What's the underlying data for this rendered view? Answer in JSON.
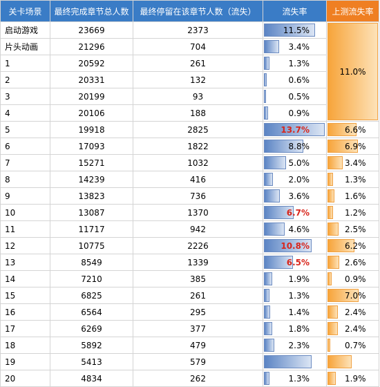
{
  "headers": [
    "关卡场景",
    "最终完成章节总人数",
    "最终停留在该章节人数（流失）",
    "流失率",
    "上测流失率"
  ],
  "rows": [
    {
      "scene": "启动游戏",
      "completed": "23669",
      "stayed": "2373",
      "rate": "11.5%",
      "rate_value": 11.5,
      "highlight": false
    },
    {
      "scene": "片头动画",
      "completed": "21296",
      "stayed": "704",
      "rate": "3.4%",
      "rate_value": 3.4,
      "highlight": false
    },
    {
      "scene": "1",
      "completed": "20592",
      "stayed": "261",
      "rate": "1.3%",
      "rate_value": 1.3,
      "highlight": false
    },
    {
      "scene": "2",
      "completed": "20331",
      "stayed": "132",
      "rate": "0.6%",
      "rate_value": 0.6,
      "highlight": false
    },
    {
      "scene": "3",
      "completed": "20199",
      "stayed": "93",
      "rate": "0.5%",
      "rate_value": 0.5,
      "highlight": false
    },
    {
      "scene": "4",
      "completed": "20106",
      "stayed": "188",
      "rate": "0.9%",
      "rate_value": 0.9,
      "highlight": false
    },
    {
      "scene": "5",
      "completed": "19918",
      "stayed": "2825",
      "rate": "13.7%",
      "rate_value": 13.7,
      "highlight": true,
      "prev": "6.6%",
      "prev_value": 6.6
    },
    {
      "scene": "6",
      "completed": "17093",
      "stayed": "1822",
      "rate": "8.8%",
      "rate_value": 8.8,
      "highlight": false,
      "prev": "6.9%",
      "prev_value": 6.9
    },
    {
      "scene": "7",
      "completed": "15271",
      "stayed": "1032",
      "rate": "5.0%",
      "rate_value": 5.0,
      "highlight": false,
      "prev": "3.4%",
      "prev_value": 3.4
    },
    {
      "scene": "8",
      "completed": "14239",
      "stayed": "416",
      "rate": "2.0%",
      "rate_value": 2.0,
      "highlight": false,
      "prev": "1.3%",
      "prev_value": 1.3
    },
    {
      "scene": "9",
      "completed": "13823",
      "stayed": "736",
      "rate": "3.6%",
      "rate_value": 3.6,
      "highlight": false,
      "prev": "1.6%",
      "prev_value": 1.6
    },
    {
      "scene": "10",
      "completed": "13087",
      "stayed": "1370",
      "rate": "6.7%",
      "rate_value": 6.7,
      "highlight": true,
      "prev": "1.2%",
      "prev_value": 1.2
    },
    {
      "scene": "11",
      "completed": "11717",
      "stayed": "942",
      "rate": "4.6%",
      "rate_value": 4.6,
      "highlight": false,
      "prev": "2.5%",
      "prev_value": 2.5
    },
    {
      "scene": "12",
      "completed": "10775",
      "stayed": "2226",
      "rate": "10.8%",
      "rate_value": 10.8,
      "highlight": true,
      "prev": "6.2%",
      "prev_value": 6.2
    },
    {
      "scene": "13",
      "completed": "8549",
      "stayed": "1339",
      "rate": "6.5%",
      "rate_value": 6.5,
      "highlight": true,
      "prev": "2.6%",
      "prev_value": 2.6
    },
    {
      "scene": "14",
      "completed": "7210",
      "stayed": "385",
      "rate": "1.9%",
      "rate_value": 1.9,
      "highlight": false,
      "prev": "0.9%",
      "prev_value": 0.9
    },
    {
      "scene": "15",
      "completed": "6825",
      "stayed": "261",
      "rate": "1.3%",
      "rate_value": 1.3,
      "highlight": false,
      "prev": "7.0%",
      "prev_value": 7.0
    },
    {
      "scene": "16",
      "completed": "6564",
      "stayed": "295",
      "rate": "1.4%",
      "rate_value": 1.4,
      "highlight": false,
      "prev": "2.4%",
      "prev_value": 2.4
    },
    {
      "scene": "17",
      "completed": "6269",
      "stayed": "377",
      "rate": "1.8%",
      "rate_value": 1.8,
      "highlight": false,
      "prev": "2.4%",
      "prev_value": 2.4
    },
    {
      "scene": "18",
      "completed": "5892",
      "stayed": "479",
      "rate": "2.3%",
      "rate_value": 2.3,
      "highlight": false,
      "prev": "0.7%",
      "prev_value": 0.7
    },
    {
      "scene": "19",
      "completed": "5413",
      "stayed": "579",
      "rate": "",
      "rate_value": 10.7,
      "highlight": false,
      "prev": "",
      "prev_value": 5.5
    },
    {
      "scene": "20",
      "completed": "4834",
      "stayed": "262",
      "rate": "1.3%",
      "rate_value": 1.3,
      "highlight": false,
      "prev": "1.9%",
      "prev_value": 1.9
    }
  ],
  "merged_prev": {
    "label": "11.0%",
    "value": 11.0
  },
  "colors": {
    "header_blue": "#3a7cc6",
    "header_orange": "#ef7f22",
    "highlight_text": "#d8261c"
  }
}
